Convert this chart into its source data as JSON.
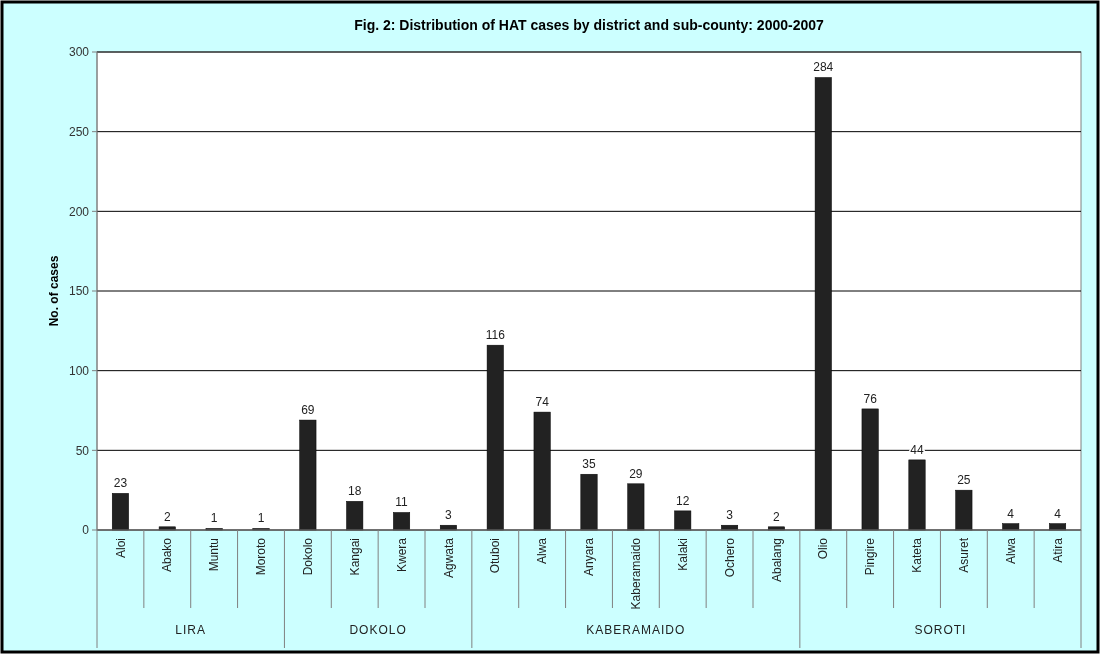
{
  "chart_data": {
    "type": "bar",
    "title": "Fig. 2: Distribution of HAT cases by district and sub-county: 2000-2007",
    "ylabel": "No. of cases",
    "categories": [
      "Aloi",
      "Abako",
      "Muntu",
      "Moroto",
      "Dokolo",
      "Kangai",
      "Kwera",
      "Agwata",
      "Otuboi",
      "Alwa",
      "Anyara",
      "Kaberamaido",
      "Kalaki",
      "Ochero",
      "Abalang",
      "Olio",
      "Pingire",
      "Kateta",
      "Asuret",
      "Alwa",
      "Atira"
    ],
    "values": [
      23,
      2,
      1,
      1,
      69,
      18,
      11,
      3,
      116,
      74,
      35,
      29,
      12,
      3,
      2,
      284,
      76,
      44,
      25,
      4,
      4
    ],
    "color": "#222222",
    "data_labels": true,
    "ylim": [
      0,
      300
    ],
    "yticks": [
      0,
      50,
      100,
      150,
      200,
      250,
      300
    ],
    "grid": "y",
    "annotations": [
      "LIRA",
      "DOKOLO",
      "KABERAMAIDO",
      "SOROTI"
    ]
  }
}
